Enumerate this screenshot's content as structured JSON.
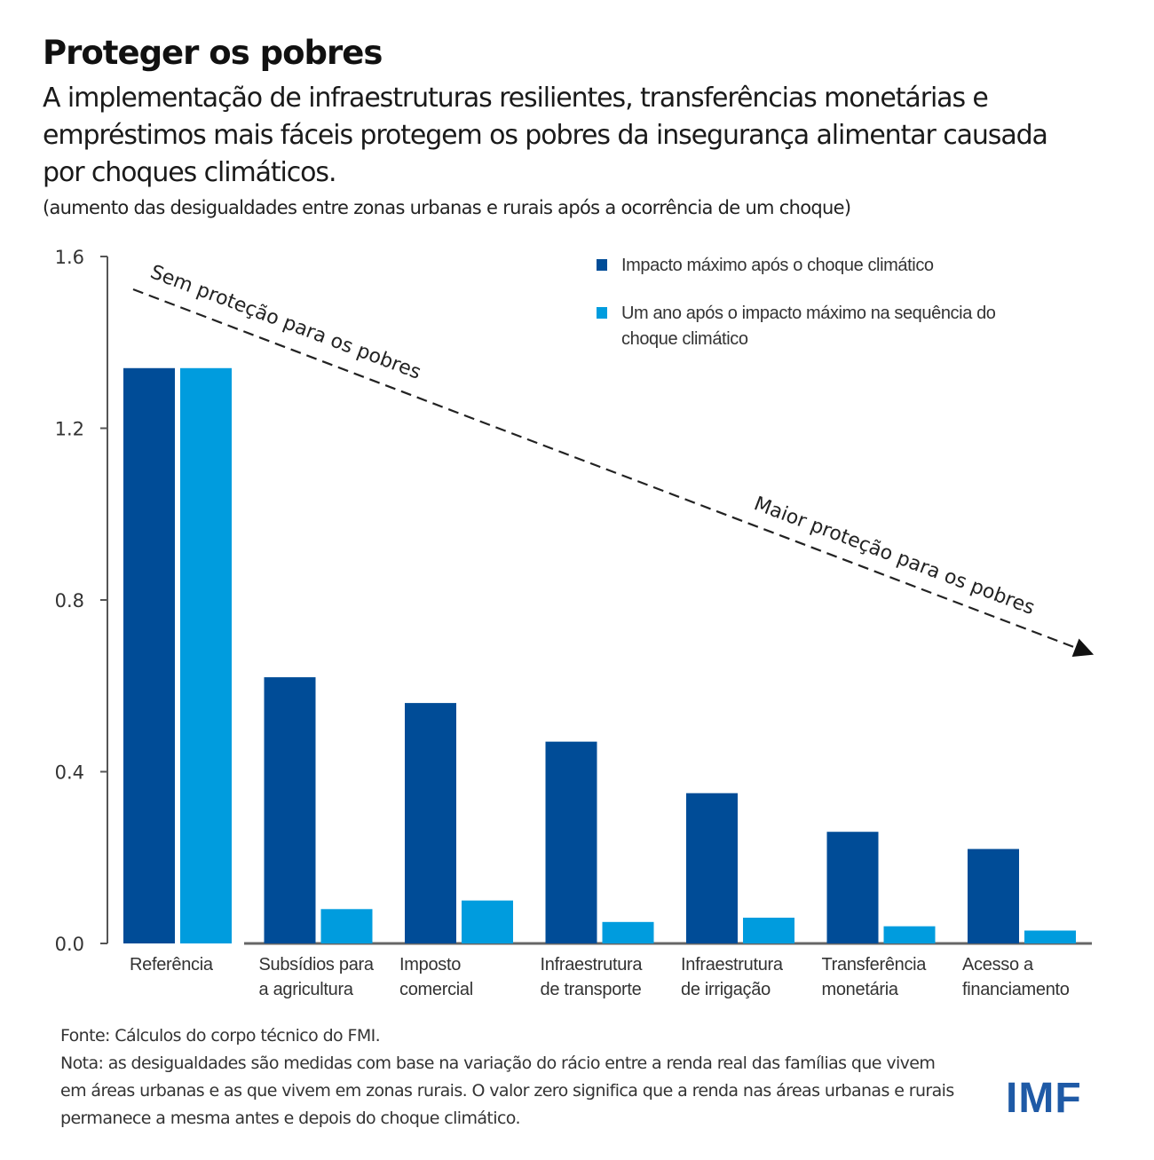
{
  "header": {
    "title": "Proteger os pobres",
    "subtitle": "A implementação de infraestruturas resilientes, transferências monetárias e empréstimos mais fáceis protegem os pobres da insegurança alimentar causada por choques climáticos.",
    "units": "(aumento das desigualdades entre zonas urbanas e rurais após a ocorrência de um choque)"
  },
  "chart_data": {
    "type": "bar",
    "title": "Proteger os pobres",
    "xlabel": "",
    "ylabel": "",
    "ylim": [
      0,
      1.6
    ],
    "yticks": [
      "0.0",
      "0.4",
      "0.8",
      "1.2",
      "1.6"
    ],
    "ytick_values": [
      0,
      0.4,
      0.8,
      1.2,
      1.6
    ],
    "grid": false,
    "legend_position": "top-right",
    "categories": [
      [
        "Referência"
      ],
      [
        "Subsídios para",
        "a agricultura"
      ],
      [
        "Imposto",
        "comercial"
      ],
      [
        "Infraestrutura",
        "de transporte"
      ],
      [
        "Infraestrutura",
        "de irrigação"
      ],
      [
        "Transferência",
        "monetária"
      ],
      [
        "Acesso a",
        "financiamento"
      ]
    ],
    "series": [
      {
        "name": "Impacto máximo após o choque climático",
        "legend_lines": [
          "Impacto máximo após o choque climático"
        ],
        "color": "#004C97",
        "values": [
          1.34,
          0.62,
          0.56,
          0.47,
          0.35,
          0.26,
          0.22
        ]
      },
      {
        "name": "Um ano após o impacto máximo na sequência do choque climático",
        "legend_lines": [
          "Um ano após o impacto máximo na sequência do",
          "choque climático"
        ],
        "color": "#009CDE",
        "values": [
          1.34,
          0.08,
          0.1,
          0.05,
          0.06,
          0.04,
          0.03
        ]
      }
    ],
    "annotations": {
      "arrow_start_label": "Sem proteção para os pobres",
      "arrow_end_label": "Maior proteção para os pobres"
    }
  },
  "footer": {
    "source": "Fonte: Cálculos do corpo técnico do FMI.",
    "note": "Nota: as desigualdades são medidas com base na variação do rácio entre a renda real das famílias que vivem em áreas urbanas e as que vivem em zonas rurais. O valor zero significa que a renda nas áreas urbanas e rurais permanece a mesma antes e depois do choque climático."
  },
  "logo": {
    "text": "IMF",
    "color": "#1F5AA6"
  }
}
